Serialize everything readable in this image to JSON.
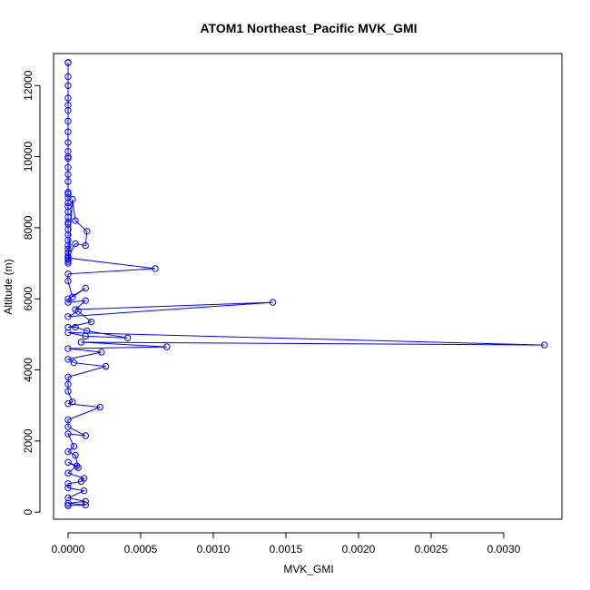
{
  "chart_data": {
    "type": "line",
    "title": "ATOM1 Northeast_Pacific MVK_GMI",
    "xlabel": "MVK_GMI",
    "ylabel": "Altitude (m)",
    "xlim": [
      -0.0001,
      0.0034
    ],
    "ylim": [
      -200,
      12900
    ],
    "xticks": [
      0,
      0.0005,
      0.001,
      0.0015,
      0.002,
      0.0025,
      0.003
    ],
    "xtick_labels": [
      "0.0000",
      "0.0005",
      "0.0010",
      "0.0015",
      "0.0020",
      "0.0025",
      "0.0030"
    ],
    "yticks": [
      0,
      2000,
      4000,
      6000,
      8000,
      10000,
      12000
    ],
    "ytick_labels": [
      "0",
      "2000",
      "4000",
      "6000",
      "8000",
      "10000",
      "12000"
    ],
    "grid": false,
    "color": "#0000ff",
    "series": [
      {
        "x": [
          0.0,
          0.0,
          0.0,
          0.0,
          0.0,
          0.0,
          0.0,
          0.0,
          0.0,
          0.0,
          0.0,
          0.0,
          0.0,
          0.0,
          0.0,
          0.0,
          0.0,
          0.0,
          0.0,
          0.0,
          0.0,
          0.0,
          0.0,
          0.0,
          0.0,
          0.0,
          0.0,
          0.0,
          0.0,
          0.0,
          0.0,
          0.0,
          0.0,
          0.0,
          0.0,
          0.0,
          3e-05,
          5e-05,
          0.00013,
          0.00012,
          5e-05,
          0.0,
          0.0006,
          0.0,
          0.0,
          3e-05,
          0.00012,
          0.0,
          0.0,
          0.00012,
          5e-05,
          0.00141,
          0.0,
          7e-05,
          0.00016,
          0.0,
          5e-05,
          0.00013,
          0.00041,
          0.00012,
          0.0,
          0.00328,
          9e-05,
          0.00068,
          0.0,
          0.00023,
          0.0,
          4e-05,
          0.00026,
          0.0,
          0.0,
          0.0,
          3e-05,
          0.0,
          0.00022,
          0.0,
          0.0,
          0.00012,
          0.0,
          4e-05,
          0.0,
          5e-05,
          7e-05,
          0.0,
          6e-05,
          0.0,
          0.00011,
          9e-05,
          0.0,
          0.0,
          0.00011,
          0.0,
          0.00012,
          0.0,
          0.00012,
          0.0,
          0.0
        ],
        "y": [
          12650,
          12640,
          12250,
          12000,
          11650,
          11450,
          11300,
          11000,
          10700,
          10400,
          10150,
          10000,
          9950,
          9700,
          9500,
          9300,
          9000,
          8950,
          8850,
          8700,
          8600,
          8450,
          8300,
          8150,
          8100,
          7950,
          7800,
          7650,
          7500,
          7400,
          7300,
          7200,
          7150,
          7100,
          7050,
          7000,
          8800,
          8200,
          7900,
          7500,
          7550,
          7150,
          6850,
          6700,
          6500,
          6050,
          6300,
          6000,
          5900,
          5950,
          5700,
          5900,
          5500,
          5650,
          5350,
          5200,
          5200,
          5100,
          4900,
          4950,
          5050,
          4700,
          4780,
          4650,
          4600,
          4500,
          4300,
          4200,
          4100,
          3800,
          3600,
          3400,
          3100,
          3050,
          2950,
          2600,
          2400,
          2150,
          2200,
          1850,
          1700,
          1600,
          1250,
          1400,
          1300,
          1100,
          950,
          860,
          800,
          680,
          600,
          400,
          300,
          250,
          200,
          190,
          180
        ]
      }
    ]
  }
}
